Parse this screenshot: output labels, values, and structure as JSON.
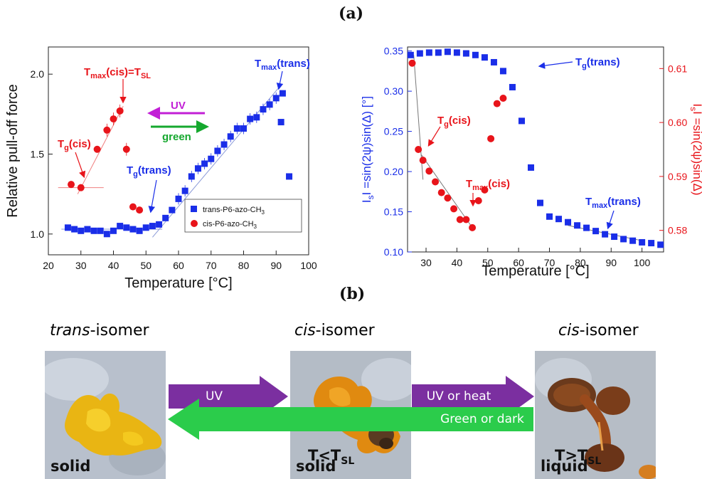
{
  "panel_labels": {
    "a": "(a)",
    "b": "(b)"
  },
  "chart_data": [
    {
      "type": "scatter",
      "xlabel": "Temperature [°C]",
      "ylabel": "Relative pull-off force",
      "xlim": [
        20,
        100
      ],
      "ylim": [
        0.87,
        2.17
      ],
      "xticks": [
        "20",
        "30",
        "40",
        "50",
        "60",
        "70",
        "80",
        "90",
        "100"
      ],
      "yticks": [
        "1.0",
        "1.5",
        "2.0"
      ],
      "legend_position": "bottom-right",
      "series": [
        {
          "name": "trans-P6-azo-CH",
          "name_sub": "3",
          "color": "#1a2ee8",
          "marker": "square",
          "x": [
            26,
            28,
            30,
            32,
            34,
            36,
            38,
            40,
            42,
            44,
            46,
            48,
            50,
            52,
            54,
            56,
            58,
            60,
            62,
            64,
            66,
            68,
            70,
            72,
            74,
            76,
            78,
            80,
            82,
            84,
            86,
            88,
            90,
            92,
            94
          ],
          "y": [
            1.04,
            1.03,
            1.02,
            1.03,
            1.02,
            1.02,
            1.0,
            1.02,
            1.05,
            1.04,
            1.03,
            1.02,
            1.04,
            1.05,
            1.06,
            1.1,
            1.15,
            1.22,
            1.27,
            1.36,
            1.41,
            1.44,
            1.47,
            1.52,
            1.56,
            1.61,
            1.66,
            1.66,
            1.72,
            1.73,
            1.78,
            1.81,
            1.85,
            1.88,
            1.7
          ]
        },
        {
          "name": "cis-P6-azo-CH",
          "name_sub": "3",
          "color": "#e8141a",
          "marker": "circle",
          "x": [
            27,
            30,
            35,
            38,
            40,
            42,
            44,
            46,
            48
          ],
          "y": [
            1.31,
            1.29,
            1.53,
            1.65,
            1.72,
            1.77,
            1.53,
            1.17,
            1.15
          ]
        }
      ],
      "extra_trans_points": {
        "x": [
          91.5,
          94
        ],
        "y": [
          1.7,
          1.36
        ]
      },
      "annotations": {
        "tmax_cis_T": "T",
        "tmax_cis_sub": "max",
        "tmax_cis_rest": "(cis)=T",
        "tmax_cis_sub2": "SL",
        "tmax_trans_T": "T",
        "tmax_trans_sub": "max",
        "tmax_trans_rest": "(trans)",
        "tg_cis_T": "T",
        "tg_cis_sub": "g",
        "tg_cis_rest": "(cis)",
        "tg_trans_T": "T",
        "tg_trans_sub": "g",
        "tg_trans_rest": "(trans)",
        "uv": "UV",
        "green": "green"
      },
      "colors": {
        "uv": "#c21fd6",
        "green": "#15a82e",
        "red": "#e8141a",
        "blue": "#1a2ee8"
      }
    },
    {
      "type": "scatter",
      "xlabel": "Temperature [°C]",
      "ylabel_left": "I =sin(2ψ)sin(Δ)  [°]",
      "ylabel_left_sub": "s",
      "ylabel_right": "I =sin(2ψ)sin(Δ)",
      "ylabel_right_sub": "s",
      "xlim": [
        24,
        107
      ],
      "ylim_left": [
        0.1,
        0.355
      ],
      "ylim_right": [
        0.576,
        0.614
      ],
      "xticks": [
        "30",
        "40",
        "50",
        "60",
        "70",
        "80",
        "90",
        "100"
      ],
      "yticks_left": [
        "0.10",
        "0.15",
        "0.20",
        "0.25",
        "0.30",
        "0.35"
      ],
      "yticks_right": [
        "0.58",
        "0.59",
        "0.60",
        "0.61"
      ],
      "series": [
        {
          "name": "trans",
          "color": "#1a2ee8",
          "marker": "square",
          "axis": "left",
          "x": [
            25,
            28,
            31,
            34,
            37,
            40,
            43,
            46,
            49,
            52,
            55,
            58,
            61,
            64,
            67,
            70,
            73,
            76,
            79,
            82,
            85,
            88,
            91,
            94,
            97,
            100,
            103,
            106
          ],
          "y": [
            0.345,
            0.347,
            0.348,
            0.348,
            0.349,
            0.348,
            0.347,
            0.345,
            0.342,
            0.336,
            0.325,
            0.305,
            0.263,
            0.205,
            0.161,
            0.144,
            0.141,
            0.137,
            0.133,
            0.13,
            0.126,
            0.122,
            0.119,
            0.116,
            0.114,
            0.112,
            0.111,
            0.109
          ]
        },
        {
          "name": "cis",
          "color": "#e8141a",
          "marker": "circle",
          "axis": "right",
          "x": [
            25.5,
            27.5,
            29,
            31,
            33,
            35,
            37,
            39,
            41,
            43,
            45,
            47,
            49,
            51,
            53,
            55
          ],
          "y": [
            0.611,
            0.595,
            0.593,
            0.591,
            0.589,
            0.587,
            0.586,
            0.584,
            0.582,
            0.582,
            0.5805,
            0.5855,
            0.5875,
            0.597,
            0.6035,
            0.6045
          ]
        }
      ],
      "annotations": {
        "tg_trans_T": "T",
        "tg_trans_sub": "g",
        "tg_trans_rest": "(trans)",
        "tg_cis_T": "T",
        "tg_cis_sub": "g",
        "tg_cis_rest": "(cis)",
        "tmax_cis_T": "T",
        "tmax_cis_sub": "max",
        "tmax_cis_rest": "(cis)",
        "tmax_trans_T": "T",
        "tmax_trans_sub": "max",
        "tmax_trans_rest": "(trans)"
      }
    }
  ],
  "scheme": {
    "titles": [
      {
        "italic": "trans",
        "rest": "-isomer",
        "color": "#2222cc"
      },
      {
        "italic": "cis",
        "rest": "-isomer",
        "color": "#e8141a"
      },
      {
        "italic": "cis",
        "rest": "-isomer",
        "color": "#e8141a"
      }
    ],
    "photo_captions": [
      "solid",
      "solid",
      "liquid"
    ],
    "arrows": {
      "uv": "UV",
      "uv_or_heat": "UV or heat",
      "green_or_dark": "Green or dark"
    },
    "arrow_colors": {
      "purple": "#7b2fa0",
      "green": "#2bcc4b"
    },
    "conditions": [
      {
        "main": "T<T",
        "sub": "SL"
      },
      {
        "main": "T>T",
        "sub": "SL"
      }
    ]
  }
}
